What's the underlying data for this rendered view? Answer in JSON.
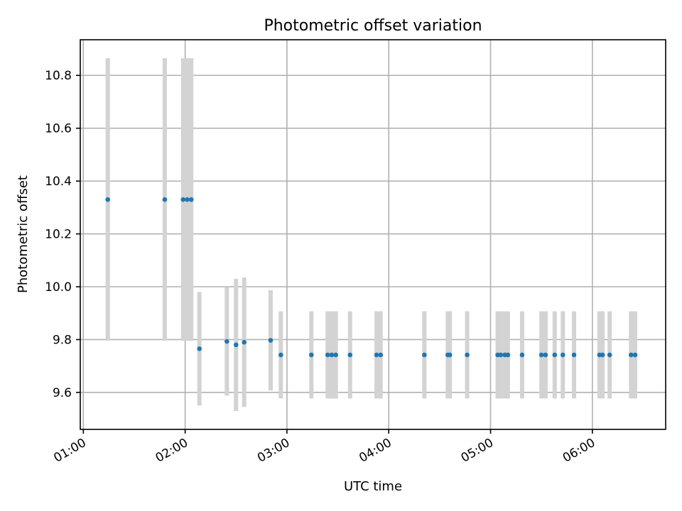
{
  "chart_data": {
    "type": "scatter",
    "title": "Photometric offset variation",
    "xlabel": "UTC time",
    "ylabel": "Photometric offset",
    "x_unit": "hours UTC",
    "xlim": [
      0.97,
      6.72
    ],
    "ylim": [
      9.46,
      10.935
    ],
    "grid": true,
    "x_ticks": [
      {
        "value": 1,
        "label": "01:00"
      },
      {
        "value": 2,
        "label": "02:00"
      },
      {
        "value": 3,
        "label": "03:00"
      },
      {
        "value": 4,
        "label": "04:00"
      },
      {
        "value": 5,
        "label": "05:00"
      },
      {
        "value": 6,
        "label": "06:00"
      }
    ],
    "y_ticks": [
      {
        "value": 9.6,
        "label": "9.6"
      },
      {
        "value": 9.8,
        "label": "9.8"
      },
      {
        "value": 10.0,
        "label": "10.0"
      },
      {
        "value": 10.2,
        "label": "10.2"
      },
      {
        "value": 10.4,
        "label": "10.4"
      },
      {
        "value": 10.6,
        "label": "10.6"
      },
      {
        "value": 10.8,
        "label": "10.8"
      }
    ],
    "marker_color": "#1f77b4",
    "errorbar_color": "#d3d3d3",
    "points": [
      {
        "x": 1.24,
        "y": 10.33,
        "yerr": 0.535
      },
      {
        "x": 1.8,
        "y": 10.33,
        "yerr": 0.535
      },
      {
        "x": 1.98,
        "y": 10.33,
        "yerr": 0.535
      },
      {
        "x": 2.02,
        "y": 10.33,
        "yerr": 0.535
      },
      {
        "x": 2.06,
        "y": 10.33,
        "yerr": 0.535
      },
      {
        "x": 2.14,
        "y": 9.765,
        "yerr": 0.215
      },
      {
        "x": 2.41,
        "y": 9.793,
        "yerr": 0.205
      },
      {
        "x": 2.5,
        "y": 9.78,
        "yerr": 0.25
      },
      {
        "x": 2.58,
        "y": 9.79,
        "yerr": 0.245
      },
      {
        "x": 2.84,
        "y": 9.797,
        "yerr": 0.19
      },
      {
        "x": 2.94,
        "y": 9.742,
        "yerr": 0.165
      },
      {
        "x": 3.24,
        "y": 9.742,
        "yerr": 0.165
      },
      {
        "x": 3.4,
        "y": 9.742,
        "yerr": 0.165
      },
      {
        "x": 3.44,
        "y": 9.742,
        "yerr": 0.165
      },
      {
        "x": 3.48,
        "y": 9.742,
        "yerr": 0.165
      },
      {
        "x": 3.62,
        "y": 9.742,
        "yerr": 0.165
      },
      {
        "x": 3.88,
        "y": 9.742,
        "yerr": 0.165
      },
      {
        "x": 3.92,
        "y": 9.742,
        "yerr": 0.165
      },
      {
        "x": 4.35,
        "y": 9.742,
        "yerr": 0.165
      },
      {
        "x": 4.58,
        "y": 9.742,
        "yerr": 0.165
      },
      {
        "x": 4.6,
        "y": 9.742,
        "yerr": 0.165
      },
      {
        "x": 4.77,
        "y": 9.742,
        "yerr": 0.165
      },
      {
        "x": 5.07,
        "y": 9.742,
        "yerr": 0.165
      },
      {
        "x": 5.1,
        "y": 9.742,
        "yerr": 0.165
      },
      {
        "x": 5.14,
        "y": 9.742,
        "yerr": 0.165
      },
      {
        "x": 5.17,
        "y": 9.742,
        "yerr": 0.165
      },
      {
        "x": 5.31,
        "y": 9.742,
        "yerr": 0.165
      },
      {
        "x": 5.5,
        "y": 9.742,
        "yerr": 0.165
      },
      {
        "x": 5.54,
        "y": 9.742,
        "yerr": 0.165
      },
      {
        "x": 5.63,
        "y": 9.742,
        "yerr": 0.165
      },
      {
        "x": 5.71,
        "y": 9.742,
        "yerr": 0.165
      },
      {
        "x": 5.82,
        "y": 9.742,
        "yerr": 0.165
      },
      {
        "x": 6.07,
        "y": 9.742,
        "yerr": 0.165
      },
      {
        "x": 6.1,
        "y": 9.742,
        "yerr": 0.165
      },
      {
        "x": 6.17,
        "y": 9.742,
        "yerr": 0.165
      },
      {
        "x": 6.38,
        "y": 9.742,
        "yerr": 0.165
      },
      {
        "x": 6.42,
        "y": 9.742,
        "yerr": 0.165
      }
    ]
  }
}
